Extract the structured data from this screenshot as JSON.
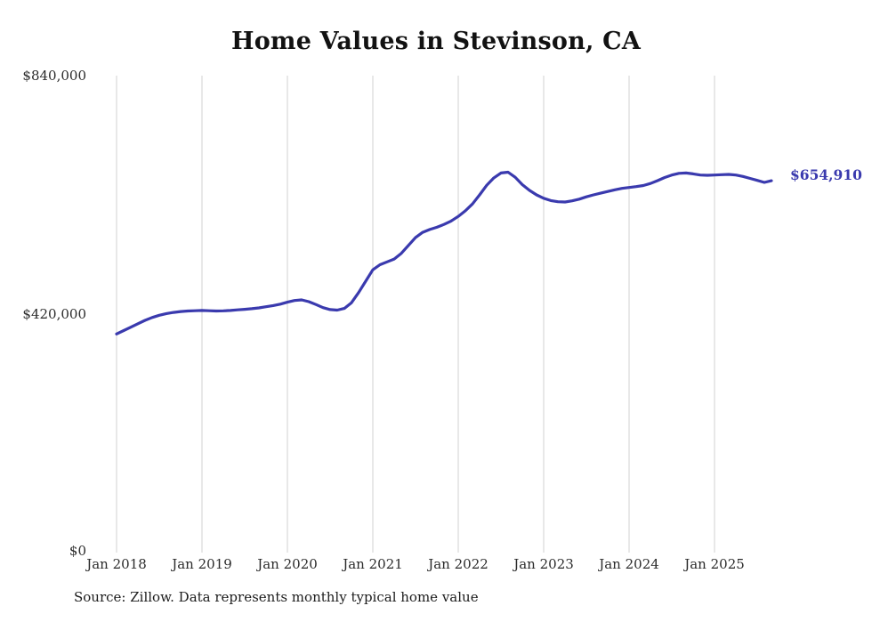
{
  "title": "Home Values in Stevinson, CA",
  "source_note": "Source: Zillow. Data represents monthly typical home value",
  "end_label": "$654,910",
  "colors": {
    "line": "#3a3aae",
    "grid": "#d2d2d2",
    "title": "#121212",
    "tick": "#2b2b2b"
  },
  "y_axis": {
    "ticks": [
      {
        "label": "$0",
        "value": 0
      },
      {
        "label": "$420,000",
        "value": 420000
      },
      {
        "label": "$840,000",
        "value": 840000
      }
    ]
  },
  "x_axis": {
    "ticks": [
      "Jan 2018",
      "Jan 2019",
      "Jan 2020",
      "Jan 2021",
      "Jan 2022",
      "Jan 2023",
      "Jan 2024",
      "Jan 2025"
    ],
    "tick_month_indices": [
      0,
      12,
      24,
      36,
      48,
      60,
      72,
      84
    ]
  },
  "chart_data": {
    "type": "line",
    "title": "Home Values in Stevinson, CA",
    "xlabel": "",
    "ylabel": "",
    "ylim": [
      0,
      840000
    ],
    "grid": "vertical",
    "legend": false,
    "x": [
      "2018-01",
      "2018-02",
      "2018-03",
      "2018-04",
      "2018-05",
      "2018-06",
      "2018-07",
      "2018-08",
      "2018-09",
      "2018-10",
      "2018-11",
      "2018-12",
      "2019-01",
      "2019-02",
      "2019-03",
      "2019-04",
      "2019-05",
      "2019-06",
      "2019-07",
      "2019-08",
      "2019-09",
      "2019-10",
      "2019-11",
      "2019-12",
      "2020-01",
      "2020-02",
      "2020-03",
      "2020-04",
      "2020-05",
      "2020-06",
      "2020-07",
      "2020-08",
      "2020-09",
      "2020-10",
      "2020-11",
      "2020-12",
      "2021-01",
      "2021-02",
      "2021-03",
      "2021-04",
      "2021-05",
      "2021-06",
      "2021-07",
      "2021-08",
      "2021-09",
      "2021-10",
      "2021-11",
      "2021-12",
      "2022-01",
      "2022-02",
      "2022-03",
      "2022-04",
      "2022-05",
      "2022-06",
      "2022-07",
      "2022-08",
      "2022-09",
      "2022-10",
      "2022-11",
      "2022-12",
      "2023-01",
      "2023-02",
      "2023-03",
      "2023-04",
      "2023-05",
      "2023-06",
      "2023-07",
      "2023-08",
      "2023-09",
      "2023-10",
      "2023-11",
      "2023-12",
      "2024-01",
      "2024-02",
      "2024-03",
      "2024-04",
      "2024-05",
      "2024-06",
      "2024-07",
      "2024-08",
      "2024-09",
      "2024-10",
      "2024-11",
      "2024-12",
      "2025-01",
      "2025-02",
      "2025-03",
      "2025-04",
      "2025-05",
      "2025-06",
      "2025-07",
      "2025-08",
      "2025-09"
    ],
    "series": [
      {
        "name": "Monthly typical home value",
        "values": [
          385000,
          391000,
          397000,
          403000,
          409000,
          414000,
          418000,
          421000,
          423000,
          424500,
          425500,
          426000,
          426500,
          426000,
          425500,
          425800,
          426500,
          427500,
          428500,
          429500,
          431000,
          433000,
          435000,
          437500,
          441000,
          444000,
          445000,
          442000,
          437000,
          431500,
          428000,
          427000,
          430000,
          440000,
          458000,
          478000,
          498000,
          507000,
          512000,
          517000,
          527000,
          541000,
          555000,
          564000,
          569000,
          573000,
          578000,
          584000,
          592000,
          602000,
          614000,
          630000,
          647000,
          660000,
          668500,
          670000,
          661000,
          648000,
          638000,
          630000,
          624000,
          620000,
          618000,
          617500,
          619500,
          622500,
          626500,
          630000,
          633000,
          636000,
          639000,
          641500,
          643000,
          644500,
          646500,
          650000,
          655000,
          660500,
          665000,
          668000,
          668500,
          667000,
          665000,
          664500,
          665000,
          665500,
          666000,
          665000,
          662500,
          659000,
          655500,
          652000,
          654910
        ]
      }
    ],
    "annotations": [
      {
        "text": "$654,910",
        "x": "2025-09",
        "y": 654910
      }
    ]
  }
}
